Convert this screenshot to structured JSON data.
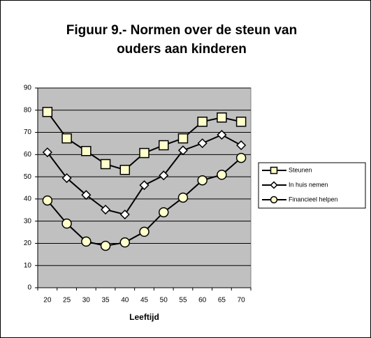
{
  "chart_data": {
    "type": "line",
    "title": "Figuur 9.- Normen over de steun van ouders aan kinderen",
    "x_label": "Leeftijd",
    "categories": [
      "20",
      "25",
      "30",
      "35",
      "40",
      "45",
      "50",
      "55",
      "60",
      "65",
      "70"
    ],
    "series": [
      {
        "name": "Steunen",
        "color": "#000000",
        "marker": "square",
        "marker_fill": "#ffffcc",
        "values": [
          79.2,
          67.3,
          61.6,
          55.7,
          53.1,
          60.7,
          64.2,
          67.3,
          74.8,
          76.7,
          74.8
        ]
      },
      {
        "name": "In huis nemen",
        "color": "#000000",
        "marker": "diamond",
        "marker_fill": "#ffffff",
        "values": [
          61.0,
          49.4,
          41.8,
          35.2,
          33.0,
          46.2,
          50.6,
          61.9,
          65.1,
          68.9,
          64.2
        ]
      },
      {
        "name": "Financieel helpen",
        "color": "#000000",
        "marker": "circle",
        "marker_fill": "#ffffcc",
        "values": [
          39.3,
          28.9,
          20.8,
          18.9,
          20.4,
          25.2,
          34.0,
          40.6,
          48.4,
          50.9,
          58.5
        ]
      }
    ],
    "ylim": [
      0,
      90
    ],
    "yticks": [
      0,
      10,
      20,
      30,
      40,
      50,
      60,
      70,
      80,
      90
    ],
    "grid": true,
    "plot_background": "#c0c0c0",
    "legend": "right"
  }
}
